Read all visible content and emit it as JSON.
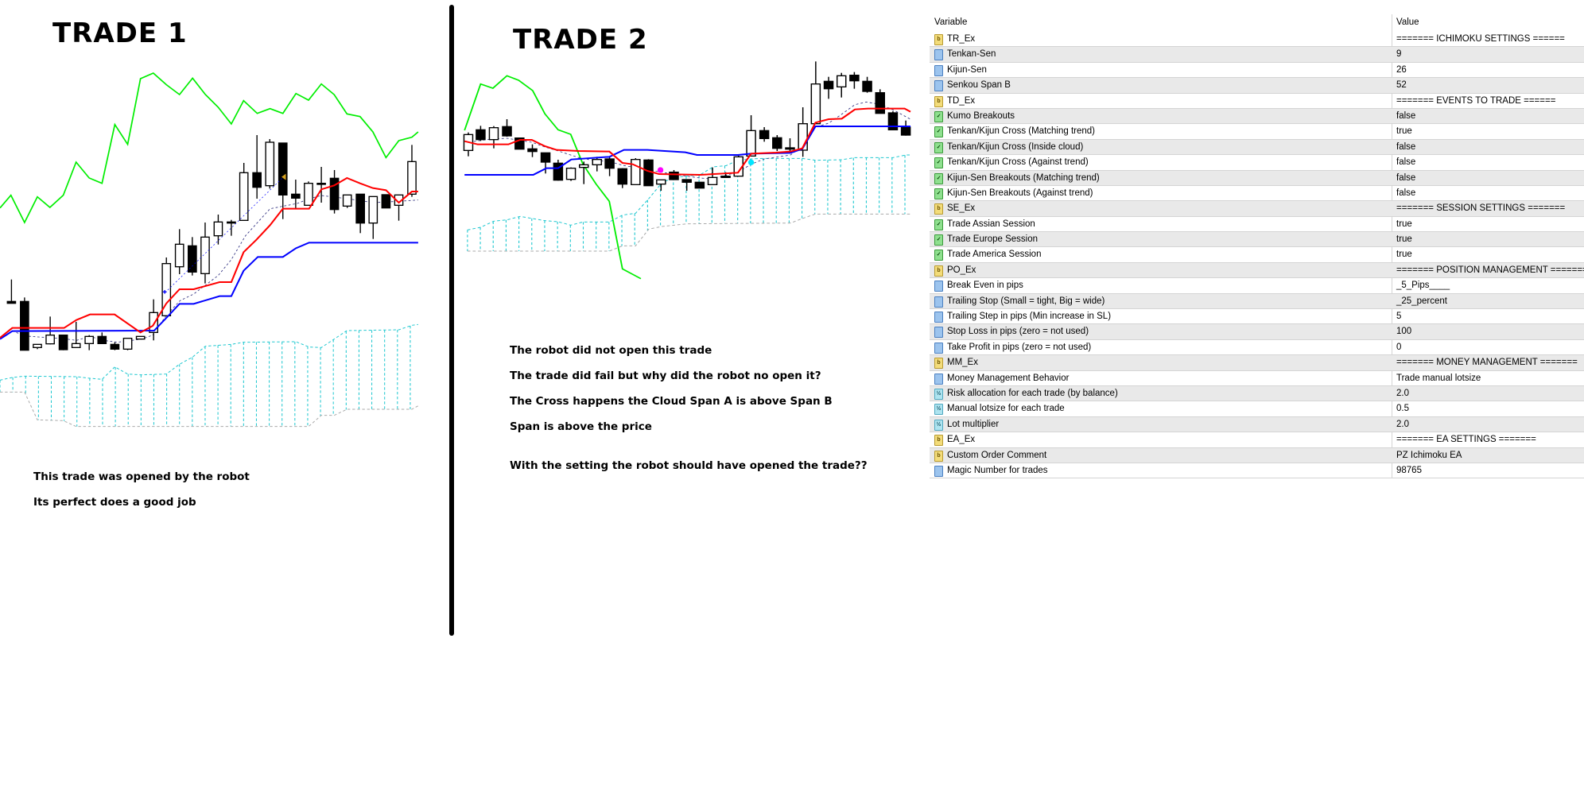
{
  "trade1": {
    "title": "TRADE 1",
    "notes": [
      "This trade was opened by the robot",
      "Its perfect does a good job"
    ]
  },
  "trade2": {
    "title": "TRADE 2",
    "notes": [
      "The robot did not open this trade",
      "The trade did fail but why did the robot no open it?",
      "The Cross happens the Cloud Span A is above Span B",
      "Span is above the price",
      "With the setting the robot should have opened the trade??"
    ]
  },
  "colors": {
    "chikou": "#00ee00",
    "tenkan": "#ff0000",
    "kijun": "#0000ff",
    "cloud": "#20c8d0",
    "span_b": "#aaaaaa",
    "bull_marker": "#ff00ff",
    "bear_marker": "#00e5ff",
    "entry_arrow": "#d4a020"
  },
  "inputs_table": {
    "headers": {
      "variable": "Variable",
      "value": "Value"
    },
    "rows": [
      {
        "icon": "string",
        "variable": "TR_Ex",
        "value": "======= ICHIMOKU SETTINGS ======"
      },
      {
        "icon": "int",
        "variable": "Tenkan-Sen",
        "value": "9"
      },
      {
        "icon": "int",
        "variable": "Kijun-Sen",
        "value": "26"
      },
      {
        "icon": "int",
        "variable": "Senkou Span B",
        "value": "52"
      },
      {
        "icon": "string",
        "variable": "TD_Ex",
        "value": "======= EVENTS TO TRADE ======"
      },
      {
        "icon": "bool",
        "variable": "Kumo Breakouts",
        "value": "false"
      },
      {
        "icon": "bool",
        "variable": "Tenkan/Kijun Cross (Matching trend)",
        "value": "true"
      },
      {
        "icon": "bool",
        "variable": "Tenkan/Kijun Cross (Inside cloud)",
        "value": "false"
      },
      {
        "icon": "bool",
        "variable": "Tenkan/Kijun Cross (Against trend)",
        "value": "false"
      },
      {
        "icon": "bool",
        "variable": "Kijun-Sen Breakouts (Matching trend)",
        "value": "false"
      },
      {
        "icon": "bool",
        "variable": "Kijun-Sen Breakouts (Against trend)",
        "value": "false"
      },
      {
        "icon": "string",
        "variable": "SE_Ex",
        "value": "======= SESSION SETTINGS ======="
      },
      {
        "icon": "bool",
        "variable": "Trade Assian Session",
        "value": "true"
      },
      {
        "icon": "bool",
        "variable": "Trade Europe Session",
        "value": "true"
      },
      {
        "icon": "bool",
        "variable": "Trade America Session",
        "value": "true"
      },
      {
        "icon": "string",
        "variable": "PO_Ex",
        "value": "======= POSITION MANAGEMENT ======="
      },
      {
        "icon": "int",
        "variable": "Break Even in pips",
        "value": "_5_Pips____"
      },
      {
        "icon": "int",
        "variable": "Trailing Stop (Small = tight, Big = wide)",
        "value": "_25_percent"
      },
      {
        "icon": "int",
        "variable": "Trailing Step in pips (Min increase in SL)",
        "value": "5"
      },
      {
        "icon": "int",
        "variable": "Stop Loss in pips (zero = not used)",
        "value": "100"
      },
      {
        "icon": "int",
        "variable": "Take Profit in pips (zero = not used)",
        "value": "0"
      },
      {
        "icon": "string",
        "variable": "MM_Ex",
        "value": "======= MONEY MANAGEMENT ======="
      },
      {
        "icon": "int",
        "variable": "Money Management Behavior",
        "value": "Trade manual lotsize"
      },
      {
        "icon": "double",
        "variable": "Risk allocation for each trade (by balance)",
        "value": "2.0"
      },
      {
        "icon": "double",
        "variable": "Manual lotsize for each trade",
        "value": "0.5"
      },
      {
        "icon": "double",
        "variable": "Lot multiplier",
        "value": "2.0"
      },
      {
        "icon": "string",
        "variable": "EA_Ex",
        "value": "======= EA SETTINGS ======="
      },
      {
        "icon": "string",
        "variable": "Custom Order Comment",
        "value": "PZ Ichimoku EA"
      },
      {
        "icon": "int",
        "variable": "Magic Number for trades",
        "value": "98765"
      }
    ]
  }
}
